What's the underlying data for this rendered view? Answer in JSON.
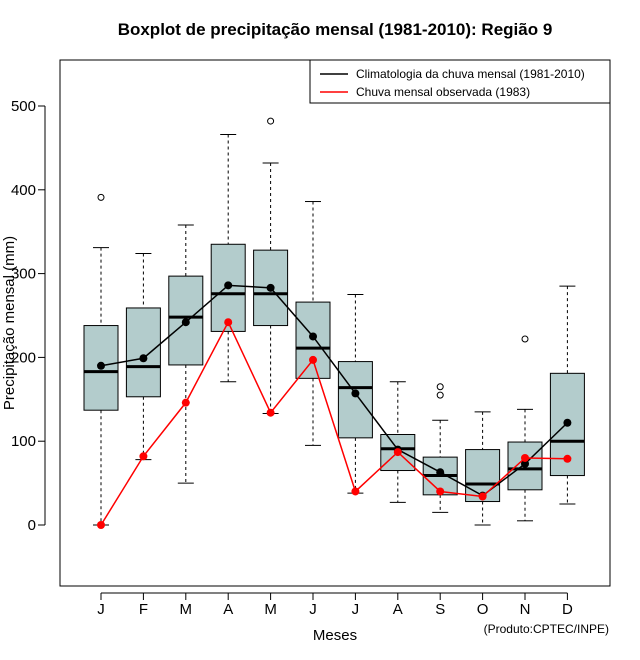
{
  "chart_data": {
    "type": "boxplot",
    "title": "Boxplot de precipitação mensal (1981-2010): Região 9",
    "xlabel": "Meses",
    "ylabel": "Precipitação mensal (mm)",
    "ylim": [
      -70,
      570
    ],
    "yticks": [
      0,
      100,
      200,
      300,
      400,
      500
    ],
    "categories": [
      "J",
      "F",
      "M",
      "A",
      "M",
      "J",
      "J",
      "A",
      "S",
      "O",
      "N",
      "D"
    ],
    "boxes": [
      {
        "whisker_low": 0,
        "q1": 137,
        "median": 183,
        "q3": 238,
        "whisker_high": 331,
        "outliers": [
          391
        ]
      },
      {
        "whisker_low": 78,
        "q1": 153,
        "median": 189,
        "q3": 259,
        "whisker_high": 324,
        "outliers": []
      },
      {
        "whisker_low": 50,
        "q1": 191,
        "median": 248,
        "q3": 297,
        "whisker_high": 358,
        "outliers": []
      },
      {
        "whisker_low": 171,
        "q1": 231,
        "median": 276,
        "q3": 335,
        "whisker_high": 466,
        "outliers": []
      },
      {
        "whisker_low": 133,
        "q1": 238,
        "median": 276,
        "q3": 328,
        "whisker_high": 432,
        "outliers": [
          482
        ]
      },
      {
        "whisker_low": 95,
        "q1": 175,
        "median": 211,
        "q3": 266,
        "whisker_high": 386,
        "outliers": []
      },
      {
        "whisker_low": 38,
        "q1": 104,
        "median": 164,
        "q3": 195,
        "whisker_high": 275,
        "outliers": []
      },
      {
        "whisker_low": 27,
        "q1": 65,
        "median": 91,
        "q3": 108,
        "whisker_high": 171,
        "outliers": []
      },
      {
        "whisker_low": 15,
        "q1": 36,
        "median": 59,
        "q3": 81,
        "whisker_high": 125,
        "outliers": [
          155,
          165
        ]
      },
      {
        "whisker_low": 0,
        "q1": 28,
        "median": 49,
        "q3": 90,
        "whisker_high": 135,
        "outliers": []
      },
      {
        "whisker_low": 5,
        "q1": 42,
        "median": 67,
        "q3": 99,
        "whisker_high": 138,
        "outliers": [
          222
        ]
      },
      {
        "whisker_low": 25,
        "q1": 59,
        "median": 100,
        "q3": 181,
        "whisker_high": 285,
        "outliers": []
      }
    ],
    "series": [
      {
        "name": "Climatologia da chuva mensal (1981-2010)",
        "color": "#000000",
        "values": [
          190,
          199,
          242,
          286,
          283,
          225,
          157,
          90,
          63,
          35,
          73,
          122
        ]
      },
      {
        "name": "Chuva mensal observada (1983)",
        "color": "#ff0000",
        "values": [
          0,
          82,
          146,
          242,
          134,
          197,
          40,
          87,
          40,
          34,
          80,
          79
        ]
      }
    ],
    "legend_position": "top-right",
    "box_fill": "#b3cccc",
    "credit": "(Produto:CPTEC/INPE)"
  }
}
